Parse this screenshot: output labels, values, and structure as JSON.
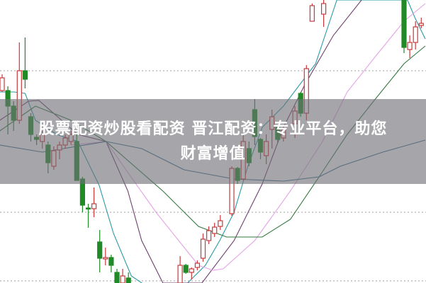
{
  "banner": {
    "line1": "股票配资炒股看配资 晋江配资：专业平台，助您",
    "line2": "财富增值"
  },
  "colors": {
    "up": "#c8383c",
    "down": "#1f8a26",
    "grid": "#b0b0b0",
    "banner": "#707076"
  },
  "chart_data": {
    "type": "candlestick",
    "title": "",
    "grid": "horizontal-dotted",
    "ylim": [
      0,
      40
    ],
    "candles": [
      [
        0,
        27.2,
        29.5,
        27.0,
        29.0
      ],
      [
        1,
        27.2,
        27.8,
        21.0,
        25.0
      ],
      [
        2,
        25.0,
        25.7,
        21.5,
        23.0
      ],
      [
        3,
        23.0,
        34.0,
        22.5,
        30.0
      ],
      [
        4,
        30.0,
        34.7,
        27.5,
        28.8
      ],
      [
        5,
        23.5,
        24.0,
        20.0,
        21.0
      ],
      [
        6,
        20.6,
        21.0,
        19.5,
        20.3
      ],
      [
        7,
        20.0,
        21.5,
        19.0,
        21.0
      ],
      [
        8,
        19.5,
        20.0,
        15.5,
        17.0
      ],
      [
        9,
        16.5,
        19.3,
        16.0,
        18.7
      ],
      [
        10,
        18.8,
        20.0,
        17.5,
        19.5
      ],
      [
        11,
        19.5,
        21.0,
        19.0,
        20.5
      ],
      [
        12,
        20.0,
        21.5,
        19.5,
        21.0
      ],
      [
        13,
        20.0,
        21.0,
        14.5,
        14.5
      ],
      [
        14,
        14.7,
        15.0,
        10.0,
        11.0
      ],
      [
        15,
        10.6,
        11.2,
        7.8,
        10.5
      ],
      [
        16,
        10.5,
        13.5,
        9.3,
        11.2
      ],
      [
        17,
        5.8,
        7.5,
        1.5,
        3.5
      ],
      [
        18,
        3.4,
        5.0,
        2.5,
        3.6
      ],
      [
        19,
        3.6,
        4.0,
        1.5,
        2.5
      ],
      [
        20,
        1.5,
        2.0,
        0,
        0
      ],
      [
        21,
        0,
        2.0,
        0,
        1.0
      ],
      [
        22,
        0.7,
        1.5,
        0,
        0
      ],
      [
        31,
        0,
        3.8,
        0,
        2.5
      ],
      [
        32,
        2.5,
        2.7,
        1.3,
        1.5
      ],
      [
        33,
        1.5,
        2.2,
        0.5,
        2.0
      ],
      [
        34,
        2.2,
        3.2,
        1.8,
        2.8
      ],
      [
        35,
        3.5,
        7.0,
        3.0,
        6.2
      ],
      [
        36,
        6.0,
        8.0,
        5.5,
        7.4
      ],
      [
        37,
        7.0,
        8.5,
        6.5,
        7.9
      ],
      [
        38,
        8.0,
        9.6,
        7.5,
        8.8
      ],
      [
        40,
        9.8,
        16.5,
        9.5,
        16.2
      ],
      [
        41,
        16.2,
        16.4,
        14.0,
        14.5
      ],
      [
        42,
        14.7,
        21.0,
        14.5,
        20.0
      ],
      [
        43,
        19.0,
        20.0,
        16.5,
        17.0
      ],
      [
        44,
        24.5,
        26.0,
        19.5,
        20.7
      ],
      [
        45,
        20.3,
        20.5,
        17.5,
        18.5
      ],
      [
        46,
        18.0,
        21.0,
        16.8,
        20.0
      ],
      [
        47,
        21.7,
        24.5,
        19.0,
        23.5
      ],
      [
        48,
        22.0,
        22.3,
        19.8,
        20.3
      ],
      [
        49,
        20.5,
        22.2,
        20.0,
        21.7
      ],
      [
        51,
        22.5,
        25.0,
        20.5,
        24.3
      ],
      [
        52,
        26.8,
        27.0,
        23.5,
        24.0
      ],
      [
        53,
        24.0,
        30.8,
        23.0,
        30.3
      ],
      [
        54,
        37.0,
        39.5,
        37.0,
        39.2
      ],
      [
        56,
        38.0,
        40.0,
        36.2,
        39.5
      ],
      [
        70,
        40.0,
        40.0,
        32.5,
        33.3
      ],
      [
        71,
        33.0,
        35.0,
        31.8,
        34.0
      ],
      [
        72,
        34.0,
        37.0,
        33.0,
        36.2
      ],
      [
        73,
        36.4,
        37.5,
        36.0,
        36.7
      ]
    ],
    "candle_format": [
      "index",
      "open",
      "high",
      "low",
      "close"
    ],
    "moving_averages": [
      {
        "color": "#2a9aa6",
        "points": [
          [
            -0.4,
            27
          ],
          [
            2.1,
            27
          ],
          [
            4,
            26.8
          ],
          [
            5.8,
            23
          ],
          [
            9.5,
            21
          ],
          [
            13.2,
            20
          ],
          [
            16.9,
            13.8
          ],
          [
            19.4,
            7
          ],
          [
            22.5,
            1
          ],
          [
            28,
            -2
          ],
          [
            32.3,
            0
          ],
          [
            35.4,
            2.5
          ],
          [
            37.9,
            6
          ],
          [
            40.4,
            10
          ],
          [
            42.8,
            16.5
          ],
          [
            45.3,
            22
          ],
          [
            49,
            25
          ],
          [
            54.6,
            31
          ],
          [
            58.3,
            40
          ],
          [
            70.6,
            40
          ],
          [
            71.9,
            37.5
          ],
          [
            73.7,
            34.5
          ]
        ]
      },
      {
        "color": "#6e3f6e",
        "points": [
          [
            -0.4,
            23
          ],
          [
            4.6,
            25.7
          ],
          [
            6.4,
            25.8
          ],
          [
            13.2,
            21
          ],
          [
            18.1,
            20
          ],
          [
            21.9,
            13
          ],
          [
            24.3,
            6
          ],
          [
            28,
            0
          ],
          [
            34.8,
            0
          ],
          [
            40.4,
            6
          ],
          [
            45.3,
            14
          ],
          [
            49,
            22
          ],
          [
            52.7,
            28
          ],
          [
            57.7,
            35
          ],
          [
            62.6,
            40
          ]
        ]
      },
      {
        "color": "#e6a2e6",
        "points": [
          [
            12,
            19.5
          ],
          [
            18.1,
            20
          ],
          [
            26.8,
            10
          ],
          [
            34.2,
            2.5
          ],
          [
            36.7,
            1.8
          ],
          [
            38.5,
            2
          ],
          [
            44,
            6
          ],
          [
            50.2,
            13
          ],
          [
            55.8,
            20
          ],
          [
            60.1,
            27
          ],
          [
            65,
            32
          ],
          [
            70,
            37
          ],
          [
            73.7,
            39.5
          ]
        ]
      },
      {
        "color": "#2f7a3c",
        "points": [
          [
            -0.4,
            21.5
          ],
          [
            5.8,
            25
          ],
          [
            12,
            23
          ],
          [
            18.1,
            20
          ],
          [
            28,
            13
          ],
          [
            34.2,
            8
          ],
          [
            39.1,
            6.5
          ],
          [
            45.3,
            6.5
          ],
          [
            50.2,
            9
          ],
          [
            55.2,
            15
          ],
          [
            60.1,
            21
          ],
          [
            65,
            26
          ],
          [
            70,
            31
          ],
          [
            73.7,
            33.5
          ]
        ]
      },
      {
        "color": "#3c6a88",
        "points": [
          [
            -0.4,
            19.5
          ],
          [
            7,
            18.5
          ],
          [
            18.1,
            20
          ],
          [
            24.3,
            19
          ],
          [
            31.7,
            16
          ],
          [
            40.4,
            14.7
          ],
          [
            49,
            14.4
          ],
          [
            55.2,
            15
          ],
          [
            58.9,
            16.5
          ],
          [
            66.3,
            18.5
          ],
          [
            73.7,
            20.2
          ]
        ]
      }
    ],
    "gridlines": [
      30,
      10,
      0.3
    ]
  }
}
